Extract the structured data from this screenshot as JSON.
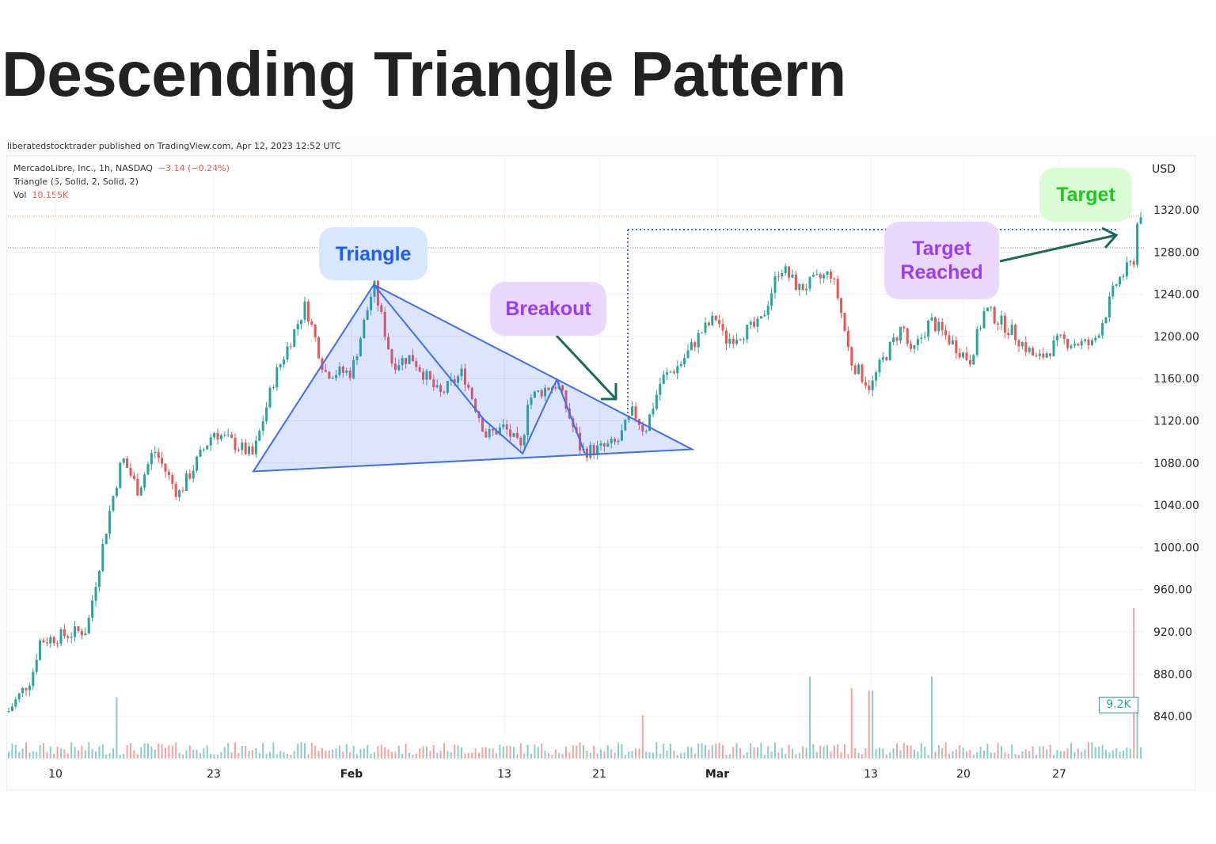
{
  "title": "Descending Triangle Pattern",
  "published": "liberatedstocktrader published on TradingView.com, Apr 12, 2023 12:52 UTC",
  "legend": {
    "symbol": "MercadoLibre, Inc., 1h, NASDAQ",
    "change": "−3.14 (−0.24%)",
    "indicator": "Triangle (5, Solid, 2, Solid, 2)",
    "vol_label": "Vol",
    "vol_value": "10.155K"
  },
  "annotations": {
    "triangle": "Triangle",
    "breakout": "Breakout",
    "target_reached": "Target Reached",
    "target": "Target"
  },
  "colors": {
    "up": "#26a69a",
    "down": "#ef5350",
    "drawing": "#3b6ef5",
    "arrow": "#1b6b5a"
  },
  "chart_data": {
    "type": "candlestick",
    "title": "",
    "currency": "USD",
    "ylim": [
      820,
      1340
    ],
    "yticks": [
      "1320.00",
      "1280.00",
      "1240.00",
      "1200.00",
      "1160.00",
      "1120.00",
      "1080.00",
      "1040.00",
      "1000.00",
      "960.00",
      "920.00",
      "880.00",
      "840.00"
    ],
    "xticks": [
      {
        "label": "10",
        "date": "01-10 00"
      },
      {
        "label": "23",
        "date": "01-23 00"
      },
      {
        "label": "Feb",
        "date": "02-01 00"
      },
      {
        "label": "13",
        "date": "02-13 00"
      },
      {
        "label": "21",
        "date": "02-21 00"
      },
      {
        "label": "Mar",
        "date": "03-01 00"
      },
      {
        "label": "13",
        "date": "03-13 00"
      },
      {
        "label": "20",
        "date": "03-20 00"
      },
      {
        "label": "27",
        "date": "03-27 00"
      }
    ],
    "price_path": [
      [
        "01-06 00",
        844
      ],
      [
        "01-08 00",
        877
      ],
      [
        "01-08 16",
        911
      ],
      [
        "01-12 14",
        922
      ],
      [
        "01-13 06",
        964
      ],
      [
        "01-14 13",
        1039
      ],
      [
        "01-15 12",
        1085
      ],
      [
        "01-16 19",
        1054
      ],
      [
        "01-18 02",
        1093
      ],
      [
        "01-20 02",
        1050
      ],
      [
        "01-23 00",
        1110
      ],
      [
        "01-25 14",
        1087
      ],
      [
        "01-26 22",
        1159
      ],
      [
        "01-29 00",
        1230
      ],
      [
        "01-30 06",
        1166
      ],
      [
        "02-01 00",
        1166
      ],
      [
        "02-02 18",
        1249
      ],
      [
        "02-04 05",
        1174
      ],
      [
        "02-05 17",
        1181
      ],
      [
        "02-07 22",
        1144
      ],
      [
        "02-09 18",
        1166
      ],
      [
        "02-11 14",
        1106
      ],
      [
        "02-13 00",
        1114
      ],
      [
        "02-14 12",
        1091
      ],
      [
        "02-14 22",
        1140
      ],
      [
        "02-16 12",
        1151
      ],
      [
        "02-17 12",
        1155
      ],
      [
        "02-19 12",
        1091
      ],
      [
        "02-21 00",
        1093
      ],
      [
        "02-22 05",
        1099
      ],
      [
        "02-23 07",
        1129
      ],
      [
        "02-24 02",
        1110
      ],
      [
        "02-25 05",
        1159
      ],
      [
        "02-26 12",
        1174
      ],
      [
        "02-27 22",
        1204
      ],
      [
        "03-01 00",
        1219
      ],
      [
        "03-01 13",
        1196
      ],
      [
        "03-04 08",
        1211
      ],
      [
        "03-05 22",
        1267
      ],
      [
        "03-07 10",
        1245
      ],
      [
        "03-09 21",
        1260
      ],
      [
        "03-10 12",
        1234
      ],
      [
        "03-11 10",
        1177
      ],
      [
        "03-13 00",
        1151
      ],
      [
        "03-13 14",
        1170
      ],
      [
        "03-15 10",
        1211
      ],
      [
        "03-16 00",
        1181
      ],
      [
        "03-17 12",
        1215
      ],
      [
        "03-19 00",
        1196
      ],
      [
        "03-20 11",
        1177
      ],
      [
        "03-21 14",
        1226
      ],
      [
        "03-23 14",
        1204
      ],
      [
        "03-25 10",
        1177
      ],
      [
        "03-27 00",
        1196
      ],
      [
        "03-29 10",
        1192
      ],
      [
        "03-30 07",
        1219
      ],
      [
        "03-31 05",
        1252
      ],
      [
        "04-01 10",
        1271
      ],
      [
        "04-01 17",
        1309
      ],
      [
        "04-02 00",
        1320
      ]
    ],
    "volume_label": "9.2K",
    "volume_spikes": [
      [
        "01-15 00",
        10.5
      ],
      [
        "02-24 00",
        7.4
      ],
      [
        "03-08 06",
        14
      ],
      [
        "03-11 10",
        12
      ],
      [
        "03-13 00",
        11.6
      ],
      [
        "03-17 12",
        14
      ],
      [
        "04-01 10",
        25.7
      ],
      [
        "04-01 17",
        9.2
      ]
    ],
    "drawings": {
      "triangle": [
        [
          "01-25 14",
          1072
        ],
        [
          "02-02 18",
          1249
        ],
        [
          "02-27 07",
          1093
        ]
      ],
      "zigzag": [
        [
          "02-02 18",
          1249
        ],
        [
          "02-11 10",
          1121
        ],
        [
          "02-14 13",
          1089
        ],
        [
          "02-17 10",
          1159
        ],
        [
          "02-19 19",
          1089
        ]
      ]
    }
  }
}
